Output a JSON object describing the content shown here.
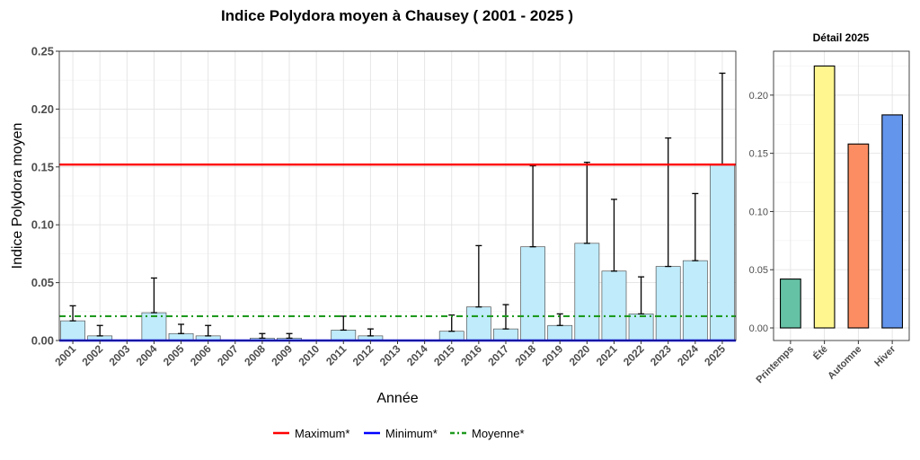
{
  "chart_data": [
    {
      "type": "bar",
      "title": "Indice Polydora moyen à Chausey ( 2001 - 2025 )",
      "xlabel": "Année",
      "ylabel": "Indice Polydora moyen",
      "ylim": [
        0,
        0.25
      ],
      "yticks": [
        "0.00",
        "0.05",
        "0.10",
        "0.15",
        "0.20",
        "0.25"
      ],
      "grid": true,
      "bar_color": "#BFEBFA",
      "categories": [
        "2001",
        "2002",
        "2003",
        "2004",
        "2005",
        "2006",
        "2007",
        "2008",
        "2009",
        "2010",
        "2011",
        "2012",
        "2013",
        "2014",
        "2015",
        "2016",
        "2017",
        "2018",
        "2019",
        "2020",
        "2021",
        "2022",
        "2023",
        "2024",
        "2025"
      ],
      "values": [
        0.017,
        0.004,
        0,
        0.024,
        0.006,
        0.004,
        0,
        0.002,
        0.002,
        0,
        0.009,
        0.004,
        0,
        0,
        0.008,
        0.029,
        0.01,
        0.081,
        0.013,
        0.084,
        0.06,
        0.023,
        0.064,
        0.069,
        0.152
      ],
      "error_upper": [
        0.03,
        0.013,
        null,
        0.054,
        0.014,
        0.013,
        null,
        0.006,
        0.006,
        null,
        0.021,
        0.01,
        null,
        null,
        0.022,
        0.082,
        0.031,
        0.151,
        0.023,
        0.154,
        0.122,
        0.055,
        0.175,
        0.127,
        0.231
      ],
      "reference_lines": [
        {
          "name": "Maximum*",
          "value": 0.152,
          "color": "#FF0000",
          "style": "solid"
        },
        {
          "name": "Minimum*",
          "value": 0.0,
          "color": "#0000FF",
          "style": "solid"
        },
        {
          "name": "Moyenne*",
          "value": 0.021,
          "color": "#1F9A1F",
          "style": "dotdash"
        }
      ],
      "legend": {
        "placement": "bottom",
        "entries": [
          "Maximum*",
          "Minimum*",
          "Moyenne*"
        ]
      }
    },
    {
      "type": "bar",
      "title": "Détail 2025",
      "categories": [
        "Printemps",
        "Été",
        "Automne",
        "Hiver"
      ],
      "values": [
        0.042,
        0.225,
        0.158,
        0.183
      ],
      "colors": [
        "#66C2A5",
        "#FFF68F",
        "#FC8D62",
        "#6495ED"
      ],
      "ylim": [
        0,
        0.23
      ],
      "yticks": [
        "0.00",
        "0.05",
        "0.10",
        "0.15",
        "0.20"
      ],
      "grid": true
    }
  ]
}
